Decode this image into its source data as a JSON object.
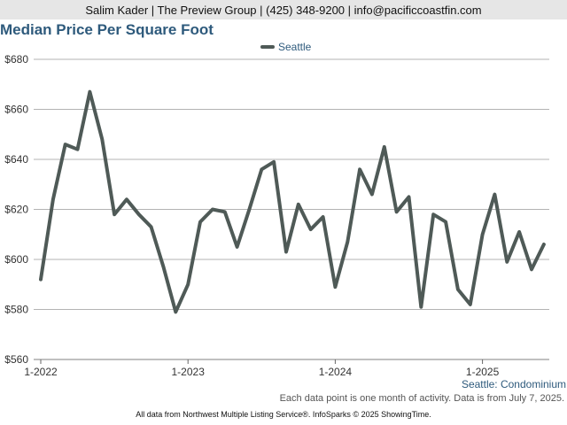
{
  "header": {
    "contact": "Salim Kader | The Preview Group | (425) 348-9200 | info@pacificcoastfin.com"
  },
  "colors": {
    "title": "#2e5a7c",
    "series_line": "#4f5a57",
    "grid": "#9a9a9a",
    "header_bg": "#e6e6e6"
  },
  "chart_data": {
    "type": "line",
    "title": "Median Price Per Square Foot",
    "xlabel": "",
    "ylabel": "",
    "x": [
      "2022-01",
      "2022-02",
      "2022-03",
      "2022-04",
      "2022-05",
      "2022-06",
      "2022-07",
      "2022-08",
      "2022-09",
      "2022-10",
      "2022-11",
      "2022-12",
      "2023-01",
      "2023-02",
      "2023-03",
      "2023-04",
      "2023-05",
      "2023-06",
      "2023-07",
      "2023-08",
      "2023-09",
      "2023-10",
      "2023-11",
      "2023-12",
      "2024-01",
      "2024-02",
      "2024-03",
      "2024-04",
      "2024-05",
      "2024-06",
      "2024-07",
      "2024-08",
      "2024-09",
      "2024-10",
      "2024-11",
      "2024-12",
      "2025-01",
      "2025-02",
      "2025-03",
      "2025-04",
      "2025-05",
      "2025-06"
    ],
    "series": [
      {
        "name": "Seattle",
        "values": [
          592,
          624,
          646,
          644,
          667,
          648,
          618,
          624,
          618,
          613,
          597,
          579,
          590,
          615,
          620,
          619,
          605,
          620,
          636,
          639,
          603,
          622,
          612,
          617,
          589,
          607,
          636,
          626,
          645,
          619,
          625,
          581,
          618,
          615,
          588,
          582,
          610,
          626,
          599,
          611,
          596,
          606
        ]
      }
    ],
    "ylim": [
      560,
      680
    ],
    "y_ticks": [
      560,
      580,
      600,
      620,
      640,
      660,
      680
    ],
    "y_tick_labels": [
      "$560",
      "$580",
      "$600",
      "$620",
      "$640",
      "$660",
      "$680"
    ],
    "x_ticks": [
      "2022-01",
      "2023-01",
      "2024-01",
      "2025-01"
    ],
    "x_tick_labels": [
      "1-2022",
      "1-2023",
      "1-2024",
      "1-2025"
    ],
    "grid": true,
    "legend": "top-center",
    "series_label": "Seattle: Condominium",
    "note": "Each data point is one month of activity. Data is from July 7, 2025.",
    "source": "All data from Northwest Multiple Listing Service®. InfoSparks © 2025 ShowingTime."
  }
}
